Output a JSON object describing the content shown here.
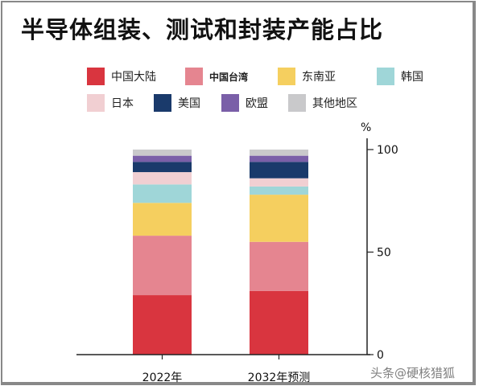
{
  "chart_data": {
    "type": "bar",
    "stacked": true,
    "title": "半导体组装、测试和封装产能占比",
    "categories": [
      "2022年",
      "2032年预测"
    ],
    "ylabel": "%",
    "ylim": [
      0,
      100
    ],
    "yticks": [
      "0",
      "50",
      "100"
    ],
    "legend_position": "top",
    "series": [
      {
        "name": "中国大陆",
        "color": "#d9353f",
        "values": [
          29,
          31
        ]
      },
      {
        "name": "中国台湾",
        "color": "#e58590",
        "values": [
          29,
          24
        ]
      },
      {
        "name": "东南亚",
        "color": "#f5cf5f",
        "values": [
          16,
          23
        ]
      },
      {
        "name": "韩国",
        "color": "#9fd6d8",
        "values": [
          9,
          4
        ]
      },
      {
        "name": "日本",
        "color": "#f1cfd2",
        "values": [
          6,
          4
        ]
      },
      {
        "name": "美国",
        "color": "#1a3a6b",
        "values": [
          5,
          8
        ]
      },
      {
        "name": "欧盟",
        "color": "#7a5fa8",
        "values": [
          3,
          3
        ]
      },
      {
        "name": "其他地区",
        "color": "#c9c9cb",
        "values": [
          3,
          3
        ]
      }
    ]
  },
  "watermark": "头条@硬核猎狐"
}
